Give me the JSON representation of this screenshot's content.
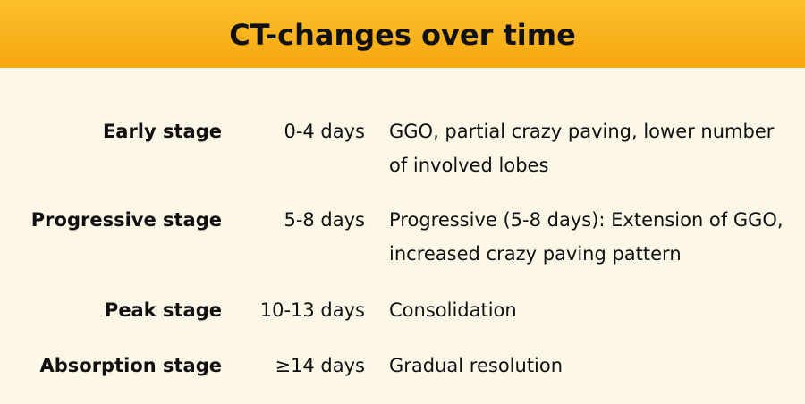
{
  "header": {
    "title": "CT-changes over time"
  },
  "table": {
    "rows": [
      [
        "Early stage",
        "0-4 days",
        "GGO, partial crazy paving, lower number of involved lobes"
      ],
      [
        "Progressive stage",
        "5-8 days",
        "Progressive (5-8 days): Extension of GGO, increased crazy paving pattern"
      ],
      [
        "Peak stage",
        "10-13 days",
        "Consolidation"
      ],
      [
        "Absorption stage",
        "≥14 days",
        "Gradual resolution"
      ]
    ]
  }
}
